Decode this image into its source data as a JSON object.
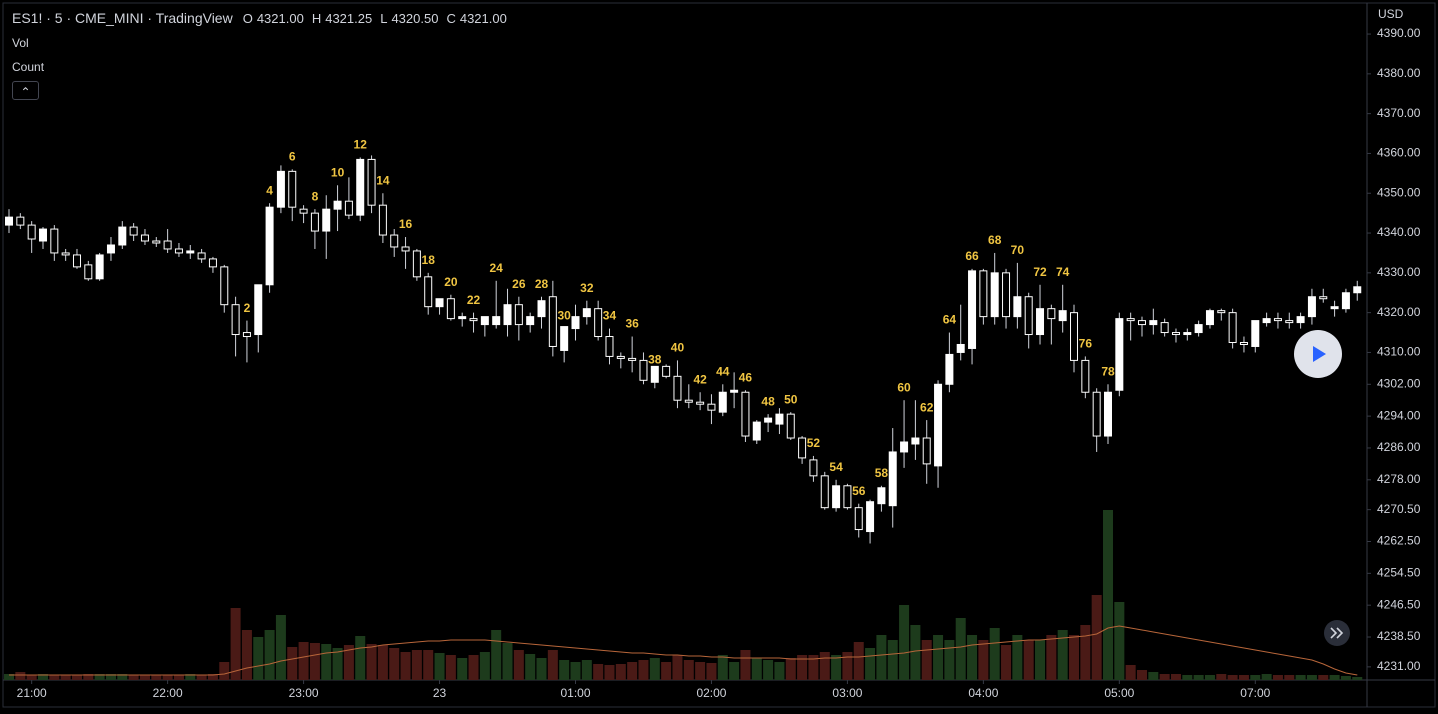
{
  "chart_data": {
    "type": "candlestick",
    "title": "ES1! · 5 · CME_MINI · TradingView",
    "legend_ohlc": [
      {
        "label": "O",
        "value": "4321.00"
      },
      {
        "label": "H",
        "value": "4321.25"
      },
      {
        "label": "L",
        "value": "4320.50"
      },
      {
        "label": "C",
        "value": "4321.00"
      }
    ],
    "indicators": [
      "Vol",
      "Count"
    ],
    "currency": "USD",
    "up_color": "#ffffff",
    "down_color": "#000000",
    "wick_color": "#d1d4dc",
    "ylim": [
      4227.7,
      4397.8
    ],
    "yticks": [
      {
        "value": 4390,
        "label": "4390.00"
      },
      {
        "value": 4380,
        "label": "4380.00"
      },
      {
        "value": 4370,
        "label": "4370.00"
      },
      {
        "value": 4360,
        "label": "4360.00"
      },
      {
        "value": 4350,
        "label": "4350.00"
      },
      {
        "value": 4340,
        "label": "4340.00"
      },
      {
        "value": 4330,
        "label": "4330.00"
      },
      {
        "value": 4320,
        "label": "4320.00"
      },
      {
        "value": 4310,
        "label": "4310.00"
      },
      {
        "value": 4302,
        "label": "4302.00"
      },
      {
        "value": 4294,
        "label": "4294.00"
      },
      {
        "value": 4286,
        "label": "4286.00"
      },
      {
        "value": 4278,
        "label": "4278.00"
      },
      {
        "value": 4270.5,
        "label": "4270.50"
      },
      {
        "value": 4262.5,
        "label": "4262.50"
      },
      {
        "value": 4254.5,
        "label": "4254.50"
      },
      {
        "value": 4246.5,
        "label": "4246.50"
      },
      {
        "value": 4238.5,
        "label": "4238.50"
      },
      {
        "value": 4231,
        "label": "4231.00"
      }
    ],
    "xlim": [
      -0.53,
      119.86
    ],
    "xticks": [
      {
        "value": 2,
        "label": "21:00"
      },
      {
        "value": 14,
        "label": "22:00"
      },
      {
        "value": 26,
        "label": "23:00"
      },
      {
        "value": 38,
        "label": "23"
      },
      {
        "value": 50,
        "label": "01:00"
      },
      {
        "value": 62,
        "label": "02:00"
      },
      {
        "value": 74,
        "label": "03:00"
      },
      {
        "value": 86,
        "label": "04:00"
      },
      {
        "value": 98,
        "label": "05:00"
      },
      {
        "value": 110,
        "label": "07:00"
      }
    ],
    "candles": {
      "open": [
        4342,
        4344,
        4342,
        4338,
        4341,
        4335,
        4334.5,
        4332,
        4328.5,
        4335,
        4337,
        4341.5,
        4339.5,
        4338,
        4338,
        4336,
        4335,
        4335,
        4333.5,
        4331.5,
        4322,
        4315,
        4314.5,
        4327,
        4346.5,
        4355.5,
        4346,
        4345,
        4340.5,
        4346,
        4348,
        4344.5,
        4358.5,
        4347,
        4339.5,
        4336.5,
        4335.5,
        4329,
        4321.5,
        4323.5,
        4318.5,
        4318.5,
        4317,
        4317,
        4317,
        4322,
        4317,
        4319,
        4324,
        4310.5,
        4316,
        4319,
        4321,
        4314,
        4309,
        4308.5,
        4308,
        4302.5,
        4306.5,
        4304,
        4298,
        4297.5,
        4297,
        4295,
        4300,
        4300,
        4288,
        4292.5,
        4292,
        4294.5,
        4288.5,
        4283,
        4279,
        4271,
        4276.5,
        4271,
        4265,
        4272,
        4271.5,
        4285,
        4287,
        4288.5,
        4281.5,
        4302,
        4310,
        4311,
        4330.5,
        4319,
        4330,
        4319,
        4324,
        4314.5,
        4321,
        4318,
        4320,
        4308,
        4300,
        4289,
        4300.5,
        4318.5,
        4318,
        4317,
        4317.5,
        4315,
        4314.5,
        4315,
        4317,
        4320.5,
        4320,
        4312.5,
        4311.5,
        4317.5,
        4318.5,
        4318,
        4317.5,
        4319,
        4324,
        4321,
        4321,
        4325
      ],
      "high": [
        4346,
        4345,
        4343,
        4341.5,
        4342,
        4336,
        4336,
        4333,
        4335,
        4339,
        4343,
        4342.5,
        4341,
        4339,
        4341,
        4337.5,
        4337,
        4336,
        4334,
        4332,
        4324,
        4318,
        4325,
        4347.5,
        4357,
        4356,
        4347,
        4346,
        4349.5,
        4352,
        4354,
        4359,
        4359.5,
        4350,
        4341,
        4339,
        4336,
        4330,
        4323.5,
        4324.5,
        4320,
        4320,
        4319,
        4328,
        4326,
        4324,
        4320,
        4324,
        4328,
        4316,
        4322,
        4323,
        4323,
        4316,
        4310,
        4314,
        4310,
        4305,
        4307,
        4308,
        4302,
        4300,
        4299.5,
        4302,
        4305,
        4300.5,
        4293,
        4294.5,
        4296,
        4295,
        4289,
        4284,
        4280,
        4278,
        4277,
        4272,
        4273,
        4276.5,
        4291,
        4298,
        4298,
        4293,
        4303,
        4315,
        4322,
        4331,
        4331,
        4335,
        4331,
        4332.5,
        4325,
        4327,
        4322,
        4327,
        4322,
        4309,
        4301,
        4302,
        4320,
        4320,
        4319,
        4321,
        4318.5,
        4316,
        4316,
        4318,
        4321,
        4321,
        4321,
        4314,
        4318,
        4320,
        4320,
        4320,
        4320,
        4326,
        4326,
        4323,
        4326,
        4328
      ],
      "low": [
        4340,
        4341,
        4335,
        4336,
        4333,
        4333,
        4331,
        4328,
        4328,
        4333,
        4336,
        4338,
        4337,
        4336.5,
        4335,
        4334,
        4333.5,
        4332.5,
        4330,
        4320,
        4309,
        4307.5,
        4310,
        4325,
        4345,
        4343,
        4342.5,
        4336,
        4333.5,
        4340.5,
        4343.5,
        4343,
        4345,
        4337.5,
        4334,
        4331,
        4328,
        4319.5,
        4319.5,
        4318,
        4316.5,
        4315,
        4314,
        4316,
        4314,
        4313,
        4315,
        4316,
        4309,
        4307.5,
        4313,
        4317,
        4313,
        4307,
        4306,
        4305,
        4302,
        4301,
        4303.5,
        4296,
        4296,
        4295.5,
        4292,
        4294,
        4296,
        4287.5,
        4287,
        4290,
        4289.5,
        4288,
        4282,
        4277.5,
        4270.5,
        4270,
        4270.5,
        4263.5,
        4262,
        4270,
        4266,
        4281,
        4283,
        4277,
        4276,
        4300,
        4308,
        4307,
        4317,
        4317,
        4316,
        4316,
        4311,
        4312,
        4312,
        4315,
        4305,
        4298.5,
        4285,
        4287,
        4299,
        4313,
        4314,
        4314.5,
        4314,
        4312.5,
        4313,
        4314,
        4316,
        4318,
        4311,
        4310,
        4310,
        4316.5,
        4316,
        4316,
        4316,
        4317,
        4322.5,
        4319,
        4320,
        4323
      ],
      "close": [
        4344,
        4342,
        4338.5,
        4341,
        4335,
        4334.5,
        4331.5,
        4328.5,
        4334.5,
        4337,
        4341.5,
        4339.5,
        4338,
        4337.5,
        4336,
        4335,
        4335.5,
        4333.5,
        4331.5,
        4322,
        4314.5,
        4314,
        4327,
        4346.5,
        4355.5,
        4346.5,
        4345,
        4340.5,
        4346,
        4348,
        4344.5,
        4358.5,
        4347,
        4339.5,
        4336.5,
        4335.5,
        4329,
        4321.5,
        4323.5,
        4318.5,
        4319,
        4318,
        4319,
        4319,
        4322,
        4317,
        4319,
        4323,
        4311.5,
        4316.5,
        4319,
        4321,
        4314,
        4309,
        4308.5,
        4308,
        4303,
        4306.5,
        4304,
        4298,
        4297.5,
        4297,
        4295.5,
        4300,
        4300.5,
        4289,
        4292.5,
        4293.5,
        4294.5,
        4288.5,
        4283.5,
        4279,
        4271,
        4276.5,
        4271,
        4265.5,
        4272.5,
        4276,
        4285,
        4287.5,
        4288.5,
        4282,
        4302,
        4309.5,
        4312,
        4330.5,
        4319,
        4330,
        4319,
        4324,
        4314.5,
        4321,
        4318.5,
        4320.5,
        4308,
        4300,
        4289,
        4300,
        4318.5,
        4318,
        4317,
        4318,
        4315,
        4314.5,
        4315,
        4317,
        4320.5,
        4320,
        4312.5,
        4312,
        4318,
        4318.5,
        4318,
        4317.5,
        4319,
        4324,
        4323.5,
        4321.5,
        4325,
        4326.5
      ]
    },
    "volume": {
      "up_color": "#1d3b1c",
      "down_color": "#4a1a16",
      "ma_color": "#b8663a",
      "vol_lim": [
        0,
        200
      ],
      "values": [
        6,
        8,
        5,
        6,
        5,
        5,
        5,
        6,
        6,
        6,
        6,
        5,
        5,
        5,
        5,
        5,
        6,
        5,
        6,
        18,
        72,
        50,
        43,
        50,
        65,
        33,
        38,
        37,
        36,
        32,
        35,
        44,
        36,
        35,
        32,
        28,
        30,
        30,
        27,
        25,
        22,
        25,
        28,
        50,
        37,
        30,
        26,
        22,
        30,
        20,
        18,
        20,
        16,
        15,
        16,
        18,
        20,
        22,
        18,
        25,
        20,
        18,
        17,
        25,
        18,
        30,
        22,
        20,
        18,
        22,
        25,
        25,
        28,
        25,
        28,
        38,
        32,
        45,
        40,
        75,
        55,
        40,
        45,
        40,
        62,
        45,
        40,
        52,
        35,
        45,
        40,
        40,
        45,
        50,
        45,
        55,
        85,
        170,
        78,
        15,
        10,
        8,
        6,
        6,
        5,
        5,
        5,
        6,
        5,
        5,
        5,
        6,
        5,
        5,
        5,
        5,
        5,
        5,
        4,
        3
      ],
      "ma": [
        5,
        5,
        5,
        5,
        5,
        5,
        5,
        5,
        5,
        5,
        5,
        5,
        5,
        5,
        5,
        5,
        5,
        5,
        5,
        6,
        9,
        12,
        14,
        16,
        19,
        21,
        23,
        25,
        27,
        28,
        30,
        32,
        33,
        35,
        36,
        37,
        38,
        39,
        39,
        40,
        40,
        40,
        40,
        39,
        38,
        37,
        36,
        35,
        34,
        33,
        32,
        31,
        30,
        29,
        28,
        27,
        27,
        26,
        25,
        25,
        24,
        24,
        23,
        23,
        22,
        22,
        22,
        22,
        22,
        21,
        21,
        21,
        22,
        22,
        23,
        23,
        24,
        25,
        26,
        27,
        29,
        30,
        31,
        32,
        33,
        35,
        36,
        37,
        38,
        39,
        40,
        40,
        41,
        42,
        43,
        44,
        46,
        52,
        54,
        52,
        50,
        48,
        46,
        44,
        42,
        40,
        38,
        36,
        34,
        32,
        30,
        28,
        26,
        24,
        22,
        20,
        16,
        11,
        7,
        5
      ]
    },
    "count_color": "#f0c542",
    "counts": [
      2,
      4,
      6,
      8,
      10,
      12,
      14,
      16,
      18,
      20,
      22,
      24,
      26,
      28,
      30,
      32,
      34,
      36,
      38,
      40,
      42,
      44,
      46,
      48,
      50,
      52,
      54,
      56,
      58,
      60,
      62,
      64,
      66,
      68,
      70,
      72,
      74,
      76,
      78
    ],
    "count_bars": [
      21,
      23,
      25,
      27,
      29,
      31,
      33,
      35,
      37,
      39,
      41,
      43,
      45,
      47,
      49,
      51,
      53,
      55,
      57,
      59,
      61,
      63,
      65,
      67,
      69,
      71,
      73,
      75,
      77,
      79,
      81,
      83,
      85,
      87,
      89,
      91,
      93,
      95,
      97
    ]
  }
}
